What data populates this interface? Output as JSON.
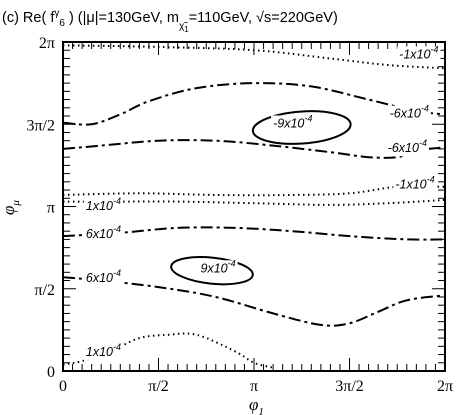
{
  "chart_data": {
    "type": "contour",
    "title": "(c) Re( f₆ᵞ ) (|μ|=130GeV, mχ̃₁=110GeV, √s=220GeV)",
    "title_parts": {
      "prefix": "(c) Re( f",
      "sup": "γ",
      "sub": "6",
      "mid": " ) (|μ|=130GeV, m",
      "msub": "χ̃",
      "msub2": "1",
      "after": "=110GeV, ",
      "sqrt": "√",
      "tail": "s=220GeV)"
    },
    "xlabel": "φ₁",
    "ylabel": "φμ",
    "xlim": [
      0,
      6.2832
    ],
    "ylim": [
      0,
      6.2832
    ],
    "x_ticks": [
      "0",
      "π/2",
      "π",
      "3π/2",
      "2π"
    ],
    "y_ticks": [
      "0",
      "π/2",
      "π",
      "3π/2",
      "2π"
    ],
    "line_styles": {
      "solid": "±9×10⁻⁴",
      "dashdot": "±6×10⁻⁴",
      "dotted": "±1×10⁻⁴"
    },
    "contour_labels": [
      {
        "text": "-1x10",
        "exp": "-4",
        "style": "dotted"
      },
      {
        "text": "-9x10",
        "exp": "-4",
        "style": "solid"
      },
      {
        "text": "-6x10",
        "exp": "-4",
        "style": "dashdot"
      },
      {
        "text": "-6x10",
        "exp": "-4",
        "style": "dashdot"
      },
      {
        "text": "-1x10",
        "exp": "-4",
        "style": "dotted"
      },
      {
        "text": "1x10",
        "exp": "-4",
        "style": "dotted"
      },
      {
        "text": "6x10",
        "exp": "-4",
        "style": "dashdot"
      },
      {
        "text": "9x10",
        "exp": "-4",
        "style": "solid"
      },
      {
        "text": "6x10",
        "exp": "-4",
        "style": "dashdot"
      },
      {
        "text": "1x10",
        "exp": "-4",
        "style": "dotted"
      }
    ]
  }
}
